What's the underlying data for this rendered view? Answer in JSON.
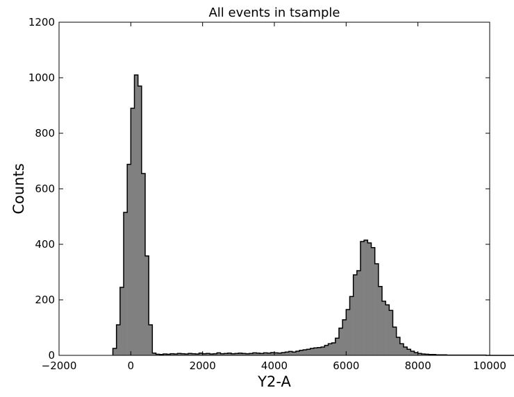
{
  "chart_data": {
    "type": "bar",
    "title": "All events in tsample",
    "xlabel": "Y2-A",
    "ylabel": "Counts",
    "xlim": [
      -2000,
      10000
    ],
    "ylim": [
      0,
      1200
    ],
    "xticks": [
      -2000,
      0,
      2000,
      4000,
      6000,
      8000,
      10000
    ],
    "yticks": [
      0,
      200,
      400,
      600,
      800,
      1000,
      1200
    ],
    "grid": false,
    "bin_width": 100,
    "bin_start": -500,
    "fill_color": "#808080",
    "edge_color": "#000000",
    "values": [
      25,
      110,
      245,
      515,
      688,
      890,
      1010,
      970,
      655,
      358,
      110,
      8,
      4,
      3,
      5,
      4,
      6,
      5,
      7,
      6,
      5,
      7,
      6,
      5,
      8,
      6,
      7,
      5,
      6,
      9,
      6,
      7,
      8,
      6,
      7,
      8,
      7,
      6,
      7,
      9,
      8,
      7,
      9,
      8,
      10,
      9,
      8,
      10,
      12,
      14,
      12,
      15,
      18,
      20,
      22,
      25,
      27,
      28,
      30,
      36,
      42,
      45,
      62,
      98,
      128,
      165,
      212,
      290,
      305,
      410,
      415,
      405,
      388,
      330,
      248,
      195,
      182,
      162,
      102,
      65,
      42,
      30,
      22,
      15,
      10,
      7,
      5,
      4,
      3,
      3,
      2,
      2,
      2,
      1,
      1,
      1,
      1,
      1,
      1,
      1,
      1,
      1,
      1,
      1,
      0,
      0,
      0,
      0,
      0,
      0,
      0,
      0,
      0,
      0,
      0
    ]
  }
}
